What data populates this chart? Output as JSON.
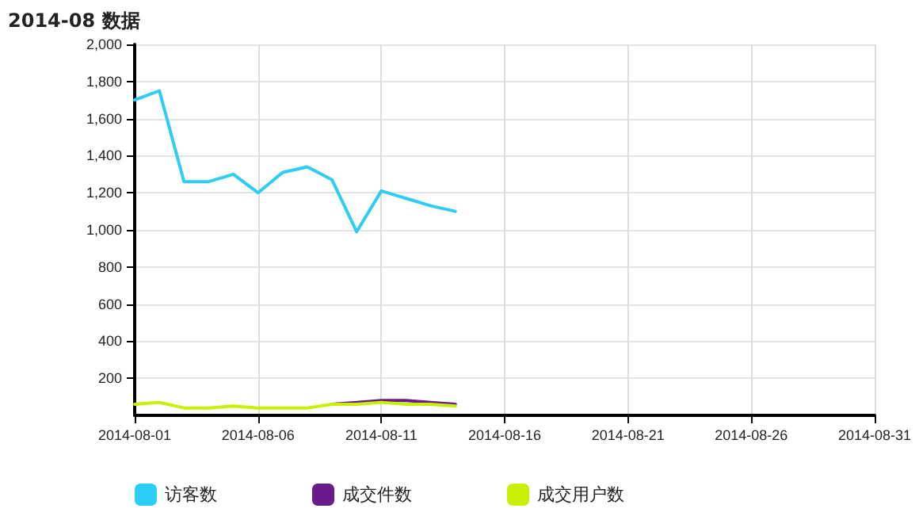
{
  "chart_data": {
    "type": "line",
    "title": "2014-08 数据",
    "x": [
      "2014-08-01",
      "2014-08-02",
      "2014-08-03",
      "2014-08-04",
      "2014-08-05",
      "2014-08-06",
      "2014-08-07",
      "2014-08-08",
      "2014-08-09",
      "2014-08-10",
      "2014-08-11",
      "2014-08-12",
      "2014-08-13",
      "2014-08-14"
    ],
    "series": [
      {
        "name": "访客数",
        "color": "#2ecdf5",
        "values": [
          1700,
          1750,
          1260,
          1260,
          1300,
          1200,
          1310,
          1340,
          1270,
          990,
          1210,
          1170,
          1130,
          1100
        ]
      },
      {
        "name": "成交件数",
        "color": "#6a1b8a",
        "values": [
          null,
          null,
          null,
          null,
          null,
          null,
          null,
          null,
          60,
          70,
          80,
          80,
          70,
          60
        ]
      },
      {
        "name": "成交用户数",
        "color": "#c8f000",
        "values": [
          60,
          70,
          40,
          40,
          50,
          40,
          40,
          40,
          60,
          60,
          70,
          60,
          60,
          50
        ]
      }
    ],
    "xlim": [
      "2014-08-01",
      "2014-08-31"
    ],
    "xticks": [
      "2014-08-01",
      "2014-08-06",
      "2014-08-11",
      "2014-08-16",
      "2014-08-21",
      "2014-08-26",
      "2014-08-31"
    ],
    "ylim": [
      0,
      2000
    ],
    "yticks": [
      {
        "value": 200,
        "label": "200"
      },
      {
        "value": 400,
        "label": "400"
      },
      {
        "value": 600,
        "label": "600"
      },
      {
        "value": 800,
        "label": "800"
      },
      {
        "value": 1000,
        "label": "1,000"
      },
      {
        "value": 1200,
        "label": "1,200"
      },
      {
        "value": 1400,
        "label": "1,400"
      },
      {
        "value": 1600,
        "label": "1,600"
      },
      {
        "value": 1800,
        "label": "1,800"
      },
      {
        "value": 2000,
        "label": "2,000"
      }
    ],
    "grid": true,
    "legend": "bottom left",
    "marker": "none",
    "line_style": "solid"
  }
}
